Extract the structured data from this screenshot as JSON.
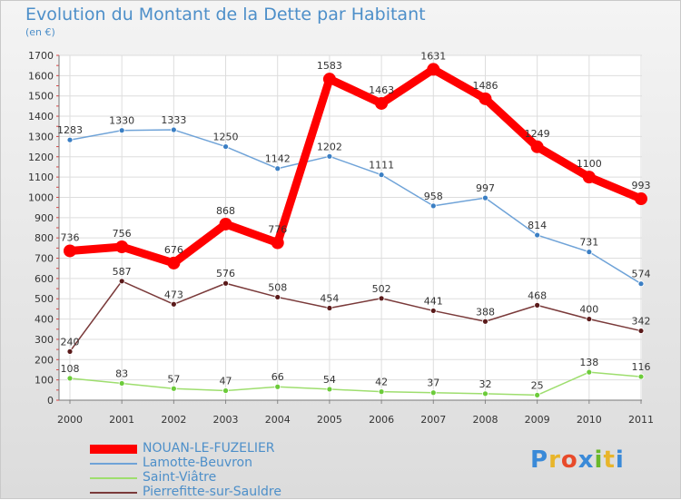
{
  "title": "Evolution du Montant de la Dette par Habitant",
  "subtitle": "(en €)",
  "logo": {
    "text": "Proxiti",
    "colors": [
      "#3a8ad8",
      "#e8b52a",
      "#e84a2a",
      "#3a8ad8",
      "#6ab82a",
      "#e8b52a",
      "#3a8ad8"
    ]
  },
  "chart_data": {
    "type": "line",
    "title": "Evolution du Montant de la Dette par Habitant",
    "subtitle": "(en €)",
    "xlabel": "",
    "ylabel": "",
    "x": [
      "2000",
      "2001",
      "2002",
      "2003",
      "2004",
      "2005",
      "2006",
      "2007",
      "2008",
      "2009",
      "2010",
      "2011"
    ],
    "ylim": [
      0,
      1700
    ],
    "yticks": [
      0,
      100,
      200,
      300,
      400,
      500,
      600,
      700,
      800,
      900,
      1000,
      1100,
      1200,
      1300,
      1400,
      1500,
      1600,
      1700
    ],
    "grid": true,
    "legend_position": "bottom-left",
    "series": [
      {
        "name": "NOUAN-LE-FUZELIER",
        "color": "#ff0000",
        "marker": "#ff0000",
        "values": [
          736,
          756,
          676,
          868,
          776,
          1583,
          1463,
          1631,
          1486,
          1249,
          1100,
          993
        ]
      },
      {
        "name": "Lamotte-Beuvron",
        "color": "#6fa3d8",
        "marker": "#3b7fc4",
        "values": [
          1283,
          1330,
          1333,
          1250,
          1142,
          1202,
          1111,
          958,
          997,
          814,
          731,
          574
        ]
      },
      {
        "name": "Saint-Viâtre",
        "color": "#9ede6e",
        "marker": "#6ccb3a",
        "values": [
          108,
          83,
          57,
          47,
          66,
          54,
          42,
          37,
          32,
          25,
          138,
          116
        ]
      },
      {
        "name": "Pierrefitte-sur-Sauldre",
        "color": "#7a3a3a",
        "marker": "#5a1a1a",
        "values": [
          240,
          587,
          473,
          576,
          508,
          454,
          502,
          441,
          388,
          468,
          400,
          342
        ]
      }
    ]
  }
}
